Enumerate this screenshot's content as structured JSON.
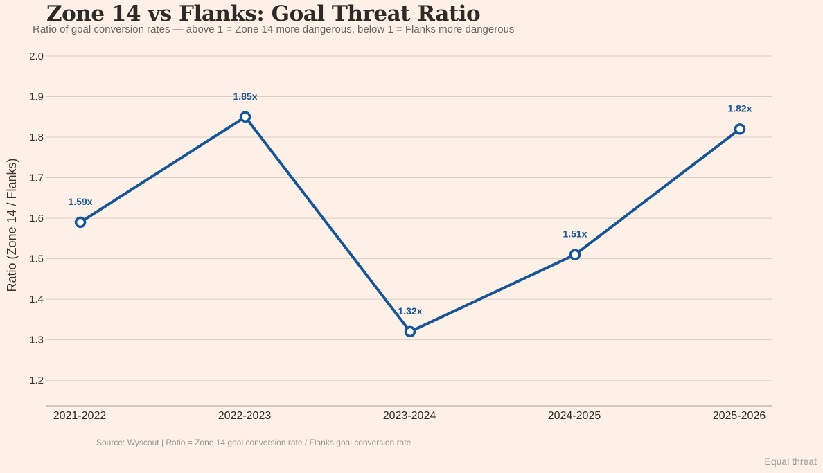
{
  "title": "Zone 14 vs Flanks: Goal Threat Ratio",
  "subtitle": "Ratio of goal conversion rates — above 1 = Zone 14 more dangerous, below 1 = Flanks more dangerous",
  "source": "Source: Wyscout |  Ratio = Zone 14 goal conversion rate / Flanks goal conversion rate",
  "legend_note": "Equal threat",
  "colors": {
    "line": "#175596",
    "label": "#175596",
    "background": "#fdf0e6",
    "grid": "#dccfc5",
    "axis": "#d4c6ba"
  },
  "chart_data": {
    "type": "line",
    "title": "Zone 14 vs Flanks: Goal Threat Ratio",
    "xlabel": "",
    "ylabel": "Ratio (Zone 14 / Flanks)",
    "categories": [
      "2021-2022",
      "2022-2023",
      "2023-2024",
      "2024-2025",
      "2025-2026"
    ],
    "series": [
      {
        "name": "Goal threat ratio",
        "values": [
          1.59,
          1.85,
          1.32,
          1.51,
          1.82
        ],
        "data_labels": [
          "1.59x",
          "1.85x",
          "1.32x",
          "1.51x",
          "1.82x"
        ]
      }
    ],
    "yticks": [
      1.2,
      1.3,
      1.4,
      1.5,
      1.6,
      1.7,
      1.8,
      1.9,
      2.0
    ],
    "ytick_labels": [
      "1.2",
      "1.3",
      "1.4",
      "1.5",
      "1.6",
      "1.7",
      "1.8",
      "1.9",
      "2.0"
    ],
    "ylim": [
      1.137,
      2.0
    ],
    "grid": true,
    "legend": "none"
  }
}
